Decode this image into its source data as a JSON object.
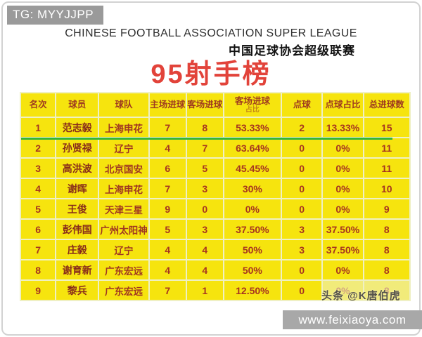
{
  "watermarks": {
    "tg": "TG: MYYJJPP",
    "toutiao": "头条 @K唐伯虎",
    "site": "www.feixiaoya.com"
  },
  "header": {
    "title_en": "CHINESE FOOTBALL ASSOCIATION SUPER LEAGUE",
    "title_zh": "中国足球协会超级联赛",
    "main_title": "95射手榜"
  },
  "colors": {
    "cell_yellow": "#f6e40e",
    "grid_gap": "#eff0c4",
    "text_red": "#a63520",
    "title_red": "#e2433a",
    "divider_green": "#35b43a",
    "watermark_gray": "#9a9a9a"
  },
  "chart_data": {
    "type": "table",
    "title": "95射手榜",
    "subtitle_en": "CHINESE FOOTBALL ASSOCIATION SUPER LEAGUE",
    "subtitle_zh": "中国足球协会超级联赛",
    "columns": [
      {
        "label": "名次"
      },
      {
        "label": "球员"
      },
      {
        "label": "球队"
      },
      {
        "label": "主场进球"
      },
      {
        "label": "客场进球"
      },
      {
        "label": "客场进球",
        "sub": "占比"
      },
      {
        "label": "点球"
      },
      {
        "label": "点球占比"
      },
      {
        "label": "总进球数"
      }
    ],
    "rows": [
      [
        "1",
        "范志毅",
        "上海申花",
        "7",
        "8",
        "53.33%",
        "2",
        "13.33%",
        "15"
      ],
      [
        "2",
        "孙贤禄",
        "辽宁",
        "4",
        "7",
        "63.64%",
        "0",
        "0%",
        "11"
      ],
      [
        "3",
        "高洪波",
        "北京国安",
        "6",
        "5",
        "45.45%",
        "0",
        "0%",
        "11"
      ],
      [
        "4",
        "谢晖",
        "上海申花",
        "7",
        "3",
        "30%",
        "0",
        "0%",
        "10"
      ],
      [
        "5",
        "王俊",
        "天津三星",
        "9",
        "0",
        "0%",
        "0",
        "0%",
        "9"
      ],
      [
        "6",
        "彭伟国",
        "广州太阳神",
        "5",
        "3",
        "37.50%",
        "3",
        "37.50%",
        "8"
      ],
      [
        "7",
        "庄毅",
        "辽宁",
        "4",
        "4",
        "50%",
        "3",
        "37.50%",
        "8"
      ],
      [
        "8",
        "谢育新",
        "广东宏远",
        "4",
        "4",
        "50%",
        "0",
        "0%",
        "8"
      ],
      [
        "9",
        "黎兵",
        "广东宏远",
        "7",
        "1",
        "12.50%",
        "0",
        "0%",
        "8"
      ]
    ],
    "notes": "green divider line under rank 1 row; last two cells of rank 9 row obscured by watermark"
  }
}
